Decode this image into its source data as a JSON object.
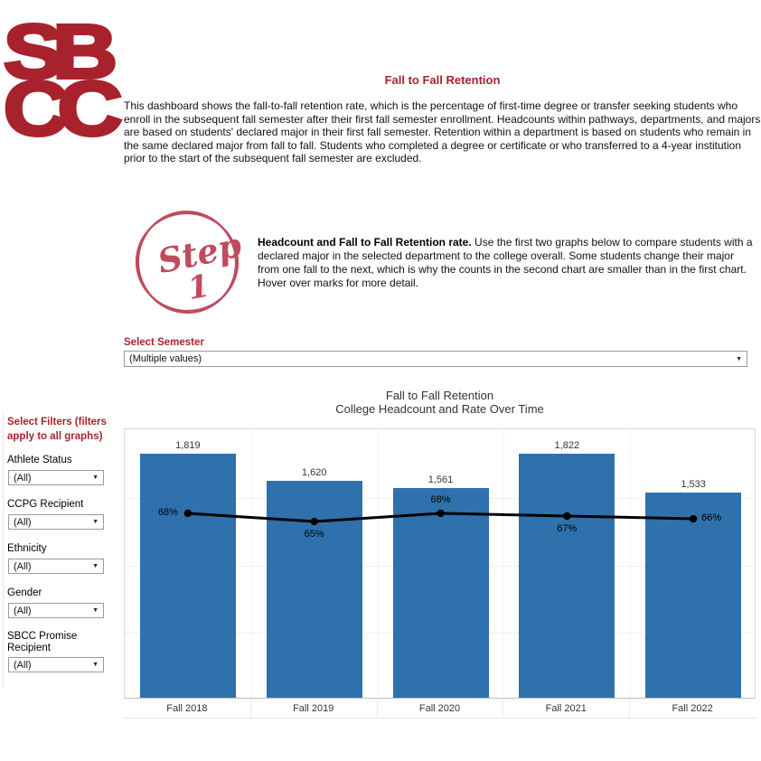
{
  "colors": {
    "brand_red": "#A7232E",
    "step_red": "#C04A5E",
    "bar_blue": "#2E71AC",
    "line_black": "#000000"
  },
  "logo": {
    "line1": "SB",
    "line2": "CC"
  },
  "header": {
    "title": "Fall to Fall Retention",
    "description": "This dashboard shows the fall-to-fall retention rate, which is the percentage of first-time degree or transfer seeking students who enroll in the subsequent fall semester after their first fall semester enrollment. Headcounts within pathways, departments, and majors are based on students' declared major in their first fall semester. Retention within a department is based on students who remain in the same declared major from fall to fall. Students who completed a degree or certificate or who transferred to a 4-year institution prior to the start of the subsequent fall semester are excluded."
  },
  "step": {
    "badge_word": "Step",
    "badge_number": "1",
    "heading_bold": "Headcount and Fall to Fall Retention rate.",
    "text": " Use the first two graphs below to compare students with a declared major in the selected department to the college overall. Some students change their major from one fall to the next, which is why the counts in the second chart are smaller than in the first chart. Hover over marks for more detail."
  },
  "semester_filter": {
    "label": "Select Semester",
    "value": "(Multiple values)"
  },
  "sidebar": {
    "heading": "Select Filters (filters apply to all graphs)",
    "filters": [
      {
        "label": "Athlete Status",
        "value": "(All)"
      },
      {
        "label": "CCPG Recipient",
        "value": "(All)"
      },
      {
        "label": "Ethnicity",
        "value": "(All)"
      },
      {
        "label": "Gender",
        "value": "(All)"
      },
      {
        "label": "SBCC Promise Recipient",
        "value": "(All)"
      }
    ]
  },
  "chart_data": {
    "type": "bar",
    "title": "Fall to Fall Retention",
    "subtitle": "College Headcount and Rate Over Time",
    "categories": [
      "Fall 2018",
      "Fall 2019",
      "Fall 2020",
      "Fall 2021",
      "Fall 2022"
    ],
    "series": [
      {
        "name": "College Headcount",
        "type": "bar",
        "values": [
          1819,
          1620,
          1561,
          1822,
          1533
        ],
        "labels": [
          "1,819",
          "1,620",
          "1,561",
          "1,822",
          "1,533"
        ]
      },
      {
        "name": "Fall to Fall Retention Rate",
        "type": "line",
        "values": [
          68,
          65,
          68,
          67,
          66
        ],
        "labels": [
          "68%",
          "65%",
          "68%",
          "67%",
          "66%"
        ]
      }
    ],
    "bar_axis": {
      "min": 0,
      "max": 2015
    },
    "line_axis": {
      "min": 0,
      "max": 100,
      "unit": "%"
    },
    "bar_gridline_values": [
      500,
      1000,
      1500
    ],
    "grid": "on",
    "legend": "none",
    "bar_color": "#2E71AC",
    "line_color": "#000000"
  }
}
